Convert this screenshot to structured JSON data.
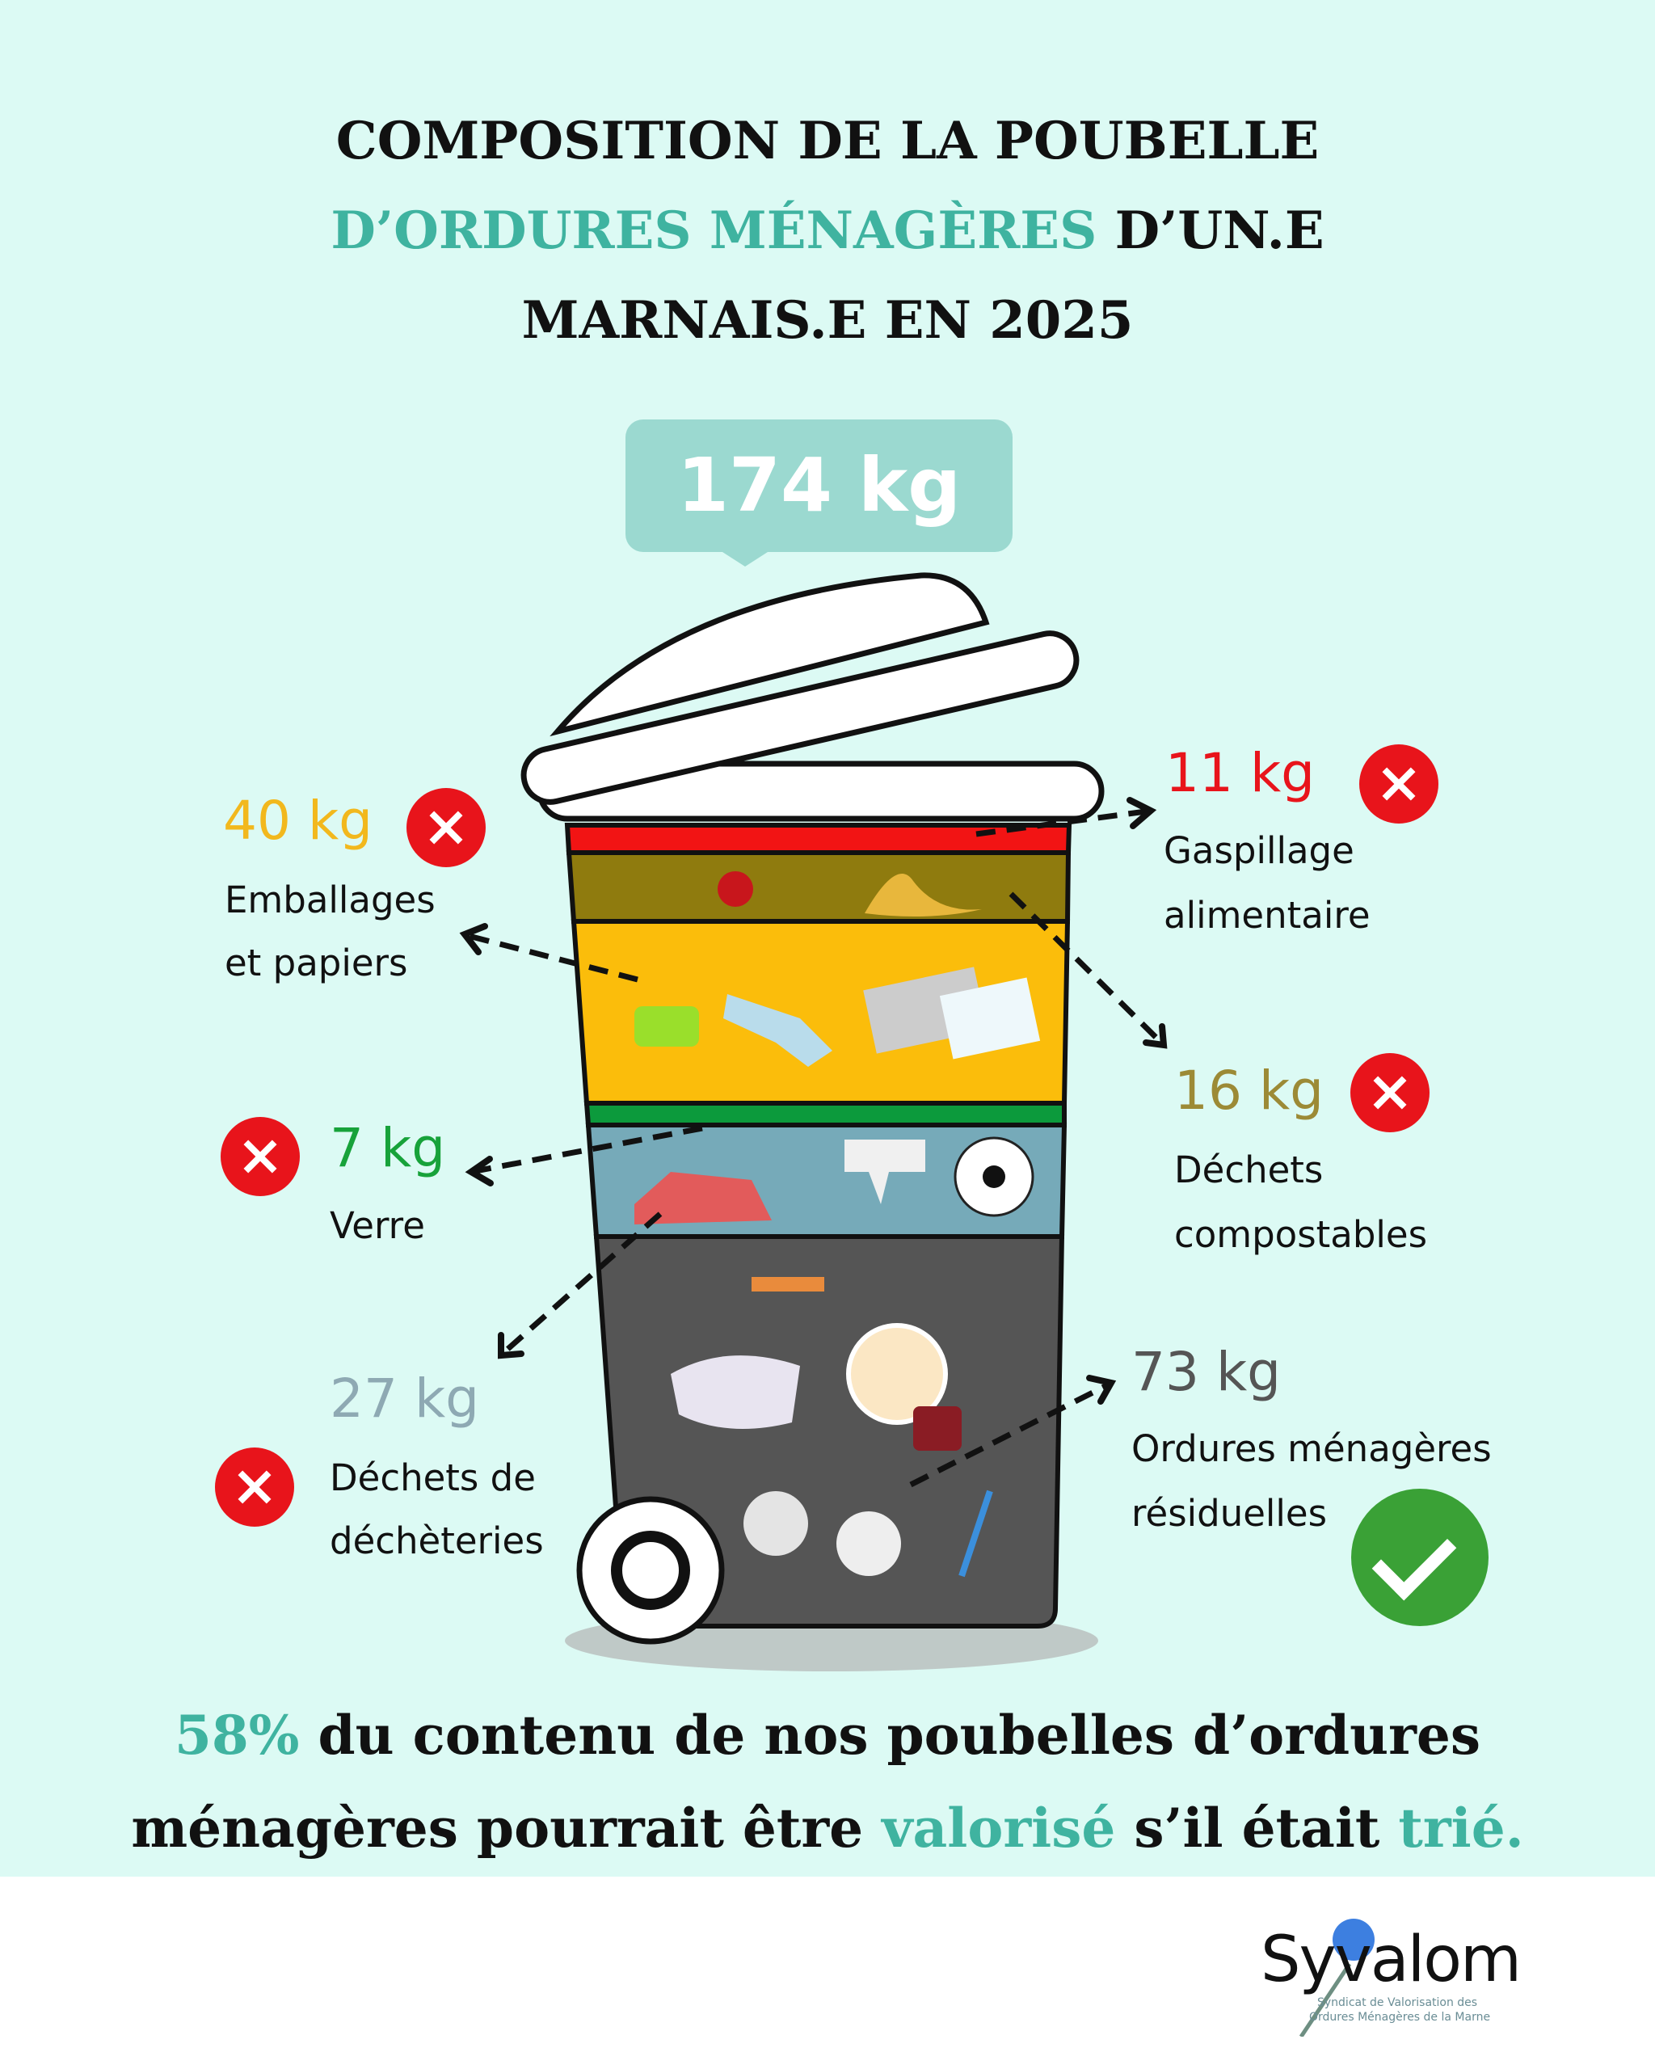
{
  "title": {
    "line1": "COMPOSITION DE LA POUBELLE",
    "line2_highlight": "D’ORDURES MÉNAGÈRES",
    "line2_rest": " D’UN.E",
    "line3": "MARNAIS.E EN 2025"
  },
  "total": "174 kg",
  "categories": [
    {
      "id": "gaspillage",
      "weight": "11 kg",
      "label1": "Gaspillage",
      "label2": "alimentaire",
      "color": "#e8141b",
      "status": "cross"
    },
    {
      "id": "compost",
      "weight": "16 kg",
      "label1": "Déchets",
      "label2": "compostables",
      "color": "#9c8a36",
      "status": "cross"
    },
    {
      "id": "emballages",
      "weight": "40 kg",
      "label1": "Emballages",
      "label2": "et papiers",
      "color": "#f2b81d",
      "status": "cross"
    },
    {
      "id": "verre",
      "weight": "7 kg",
      "label1": "Verre",
      "label2": "",
      "color": "#17a23a",
      "status": "cross"
    },
    {
      "id": "decheterie",
      "weight": "27 kg",
      "label1": "Déchets de",
      "label2": "déchèteries",
      "color": "#8ea9b3",
      "status": "cross"
    },
    {
      "id": "residuel",
      "weight": "73 kg",
      "label1": "Ordures ménagères",
      "label2": "résiduelles",
      "color": "#555555",
      "status": "check"
    }
  ],
  "bottom": {
    "pct": "58%",
    "t1": " du contenu de nos poubelles d’ordures",
    "t2": "ménagères pourrait être ",
    "valorise": "valorisé",
    "t3": " s’il était ",
    "trie": "trié."
  },
  "logo": {
    "name": "Syvalom",
    "sub1": "Syndicat de Valorisation des",
    "sub2": "Ordures Ménagères de la Marne"
  },
  "colors": {
    "background": "#dcfaf4",
    "accent": "#3fb3a0",
    "bin_gray": "#555555",
    "bin_blue": "#76aab9"
  }
}
